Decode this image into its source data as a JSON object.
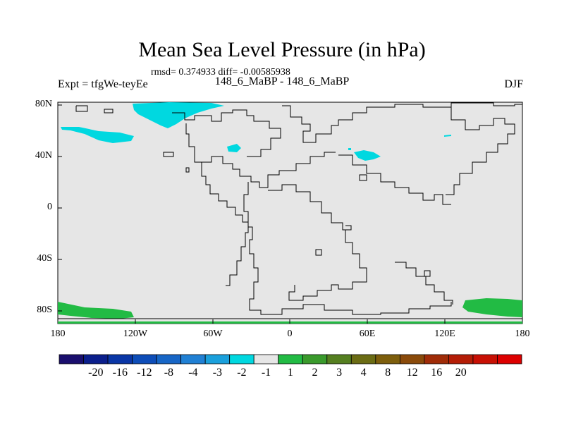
{
  "title": "Mean Sea Level Pressure (in hPa)",
  "stats": "rmsd= 0.374933 diff= -0.00585938",
  "expt_label": "Expt = tfgWe-teyEe",
  "run_label": "148_6_MaBP - 148_6_MaBP",
  "season": "DJF",
  "chart_data": {
    "type": "heatmap",
    "title": "Mean Sea Level Pressure (in hPa)",
    "x_ticks": [
      "180",
      "120W",
      "60W",
      "0",
      "60E",
      "120E",
      "180"
    ],
    "y_ticks": [
      "80N",
      "40N",
      "0",
      "40S",
      "80S"
    ],
    "xlim": [
      -180,
      180
    ],
    "ylim": [
      -90,
      90
    ],
    "background_value_range": [
      -1,
      1
    ],
    "anomaly_regions": [
      {
        "region": "Arctic north of 120W-60W",
        "bin": "-2 to -1",
        "color": "#00d8e0"
      },
      {
        "region": "Northeast Pacific ~60N 170W",
        "bin": "-2 to -1",
        "color": "#00d8e0"
      },
      {
        "region": "North Atlantic ~45N 45W",
        "bin": "-2 to -1",
        "color": "#00d8e0"
      },
      {
        "region": "Central Asia ~40N 55E",
        "bin": "-2 to -1",
        "color": "#00d8e0"
      },
      {
        "region": "Southern ocean ~75S 180-130W",
        "bin": "1 to 2",
        "color": "#22bb44"
      },
      {
        "region": "Southern ocean ~75S 130E-180",
        "bin": "1 to 2",
        "color": "#22bb44"
      }
    ],
    "colorbar": {
      "colors": [
        "#1a0f6e",
        "#0b1f8c",
        "#0a36a6",
        "#0d4db8",
        "#1766c6",
        "#2080d4",
        "#1aa0dc",
        "#00d8e0",
        "#e6e6e6",
        "#22bb44",
        "#3a9a2c",
        "#557f20",
        "#6b6c14",
        "#7d5e0c",
        "#8a4a0a",
        "#a02c08",
        "#b41d06",
        "#c81004",
        "#dd0000"
      ],
      "labels": [
        "-20",
        "-16",
        "-12",
        "-8",
        "-4",
        "-3",
        "-2",
        "-1",
        "1",
        "2",
        "3",
        "4",
        "8",
        "12",
        "16",
        "20"
      ]
    }
  }
}
